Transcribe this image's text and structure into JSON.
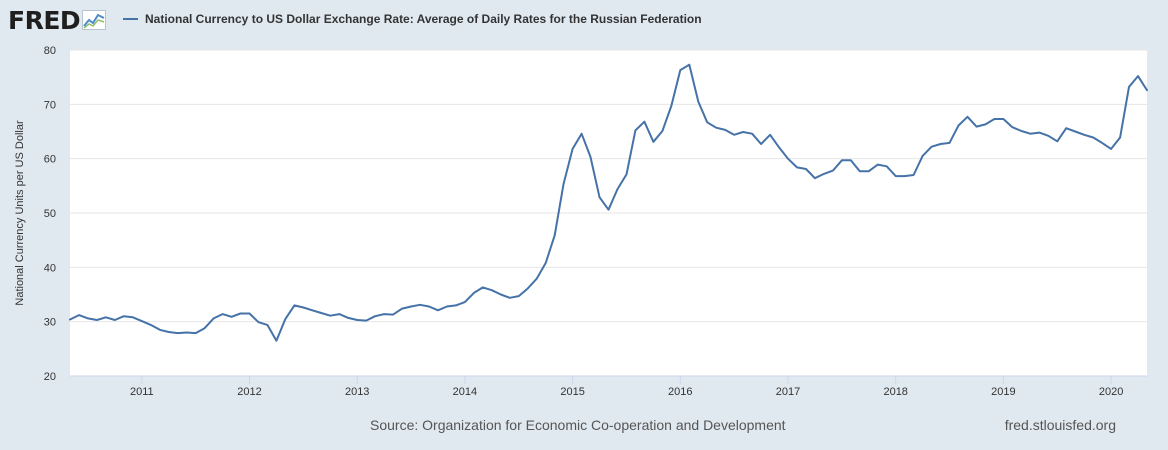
{
  "header": {
    "logo_text": "FRED",
    "logo_icon": "line-chart-icon"
  },
  "colors": {
    "background": "#e1e9f0",
    "plot_background": "#ffffff",
    "series": "#4572a7",
    "grid": "#e6e6e6"
  },
  "chart_data": {
    "type": "line",
    "series": [
      {
        "name": "National Currency to US Dollar Exchange Rate: Average of Daily Rates for the Russian Federation",
        "x": [
          "2010-05",
          "2010-06",
          "2010-07",
          "2010-08",
          "2010-09",
          "2010-10",
          "2010-11",
          "2010-12",
          "2011-01",
          "2011-02",
          "2011-03",
          "2011-04",
          "2011-05",
          "2011-06",
          "2011-07",
          "2011-08",
          "2011-09",
          "2011-10",
          "2011-11",
          "2011-12",
          "2012-01",
          "2012-02",
          "2012-03",
          "2012-04",
          "2012-05",
          "2012-06",
          "2012-07",
          "2012-08",
          "2012-09",
          "2012-10",
          "2012-11",
          "2012-12",
          "2013-01",
          "2013-02",
          "2013-03",
          "2013-04",
          "2013-05",
          "2013-06",
          "2013-07",
          "2013-08",
          "2013-09",
          "2013-10",
          "2013-11",
          "2013-12",
          "2014-01",
          "2014-02",
          "2014-03",
          "2014-04",
          "2014-05",
          "2014-06",
          "2014-07",
          "2014-08",
          "2014-09",
          "2014-10",
          "2014-11",
          "2014-12",
          "2015-01",
          "2015-02",
          "2015-03",
          "2015-04",
          "2015-05",
          "2015-06",
          "2015-07",
          "2015-08",
          "2015-09",
          "2015-10",
          "2015-11",
          "2015-12",
          "2016-01",
          "2016-02",
          "2016-03",
          "2016-04",
          "2016-05",
          "2016-06",
          "2016-07",
          "2016-08",
          "2016-09",
          "2016-10",
          "2016-11",
          "2016-12",
          "2017-01",
          "2017-02",
          "2017-03",
          "2017-04",
          "2017-05",
          "2017-06",
          "2017-07",
          "2017-08",
          "2017-09",
          "2017-10",
          "2017-11",
          "2017-12",
          "2018-01",
          "2018-02",
          "2018-03",
          "2018-04",
          "2018-05",
          "2018-06",
          "2018-07",
          "2018-08",
          "2018-09",
          "2018-10",
          "2018-11",
          "2018-12",
          "2019-01",
          "2019-02",
          "2019-03",
          "2019-04",
          "2019-05",
          "2019-06",
          "2019-07",
          "2019-08",
          "2019-09",
          "2019-10",
          "2019-11",
          "2019-12",
          "2020-01",
          "2020-02",
          "2020-03",
          "2020-04",
          "2020-05"
        ],
        "values": [
          30.4,
          31.2,
          30.6,
          30.3,
          30.8,
          30.3,
          31.0,
          30.8,
          30.1,
          29.4,
          28.5,
          28.1,
          27.9,
          28.0,
          27.9,
          28.8,
          30.6,
          31.4,
          30.9,
          31.5,
          31.5,
          29.9,
          29.4,
          26.5,
          30.5,
          33.0,
          32.6,
          32.1,
          31.6,
          31.1,
          31.4,
          30.7,
          30.3,
          30.2,
          31.0,
          31.4,
          31.3,
          32.4,
          32.8,
          33.1,
          32.8,
          32.1,
          32.8,
          33.0,
          33.6,
          35.3,
          36.3,
          35.8,
          35.0,
          34.4,
          34.7,
          36.1,
          37.9,
          40.8,
          45.9,
          55.4,
          61.8,
          64.6,
          60.3,
          52.9,
          50.6,
          54.4,
          57.1,
          65.2,
          66.8,
          63.1,
          65.1,
          69.7,
          76.3,
          77.3,
          70.5,
          66.7,
          65.7,
          65.3,
          64.4,
          64.9,
          64.6,
          62.7,
          64.4,
          62.1,
          60.0,
          58.4,
          58.1,
          56.4,
          57.2,
          57.8,
          59.7,
          59.7,
          57.7,
          57.7,
          58.9,
          58.6,
          56.8,
          56.8,
          57.0,
          60.5,
          62.2,
          62.7,
          62.9,
          66.1,
          67.7,
          65.9,
          66.3,
          67.3,
          67.3,
          65.8,
          65.1,
          64.6,
          64.8,
          64.2,
          63.2,
          65.6,
          65.0,
          64.4,
          63.9,
          62.9,
          61.8,
          63.9,
          73.2,
          75.2,
          72.6
        ]
      }
    ],
    "xticks": [
      "2011",
      "2012",
      "2013",
      "2014",
      "2015",
      "2016",
      "2017",
      "2018",
      "2019",
      "2020"
    ],
    "yticks": [
      20,
      30,
      40,
      50,
      60,
      70,
      80
    ],
    "ylim": [
      20,
      80
    ],
    "xlim": [
      "2010-05",
      "2020-05"
    ],
    "ylabel": "National Currency Units per US Dollar",
    "grid": "horizontal",
    "legend_position": "top-left"
  },
  "footer": {
    "source": "Source: Organization for Economic Co-operation and Development",
    "url": "fred.stlouisfed.org"
  }
}
